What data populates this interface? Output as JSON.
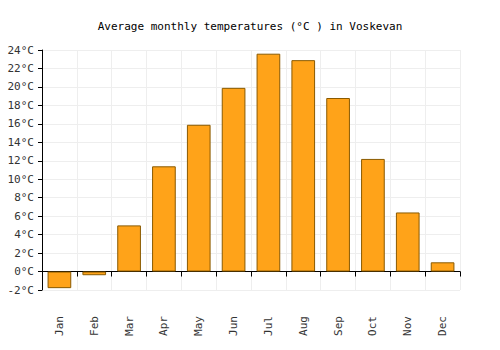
{
  "chart_data": {
    "type": "bar",
    "title": "Average monthly temperatures (°C ) in Voskevan",
    "categories": [
      "Jan",
      "Feb",
      "Mar",
      "Apr",
      "May",
      "Jun",
      "Jul",
      "Aug",
      "Sep",
      "Oct",
      "Nov",
      "Dec"
    ],
    "values": [
      -1.8,
      -0.4,
      5.0,
      11.4,
      15.9,
      19.9,
      23.6,
      22.9,
      18.8,
      12.2,
      6.4,
      1.0
    ],
    "color": "#ffa319",
    "ylim": [
      -2,
      24
    ],
    "yticks": [
      {
        "value": -2,
        "label": "-2°C"
      },
      {
        "value": 0,
        "label": "0°C"
      },
      {
        "value": 2,
        "label": "2°C"
      },
      {
        "value": 4,
        "label": "4°C"
      },
      {
        "value": 6,
        "label": "6°C"
      },
      {
        "value": 8,
        "label": "8°C"
      },
      {
        "value": 10,
        "label": "10°C"
      },
      {
        "value": 12,
        "label": "12°C"
      },
      {
        "value": 14,
        "label": "14°C"
      },
      {
        "value": 16,
        "label": "16°C"
      },
      {
        "value": 18,
        "label": "18°C"
      },
      {
        "value": 20,
        "label": "20°C"
      },
      {
        "value": 22,
        "label": "22°C"
      },
      {
        "value": 24,
        "label": "24°C"
      }
    ],
    "grid": true
  }
}
